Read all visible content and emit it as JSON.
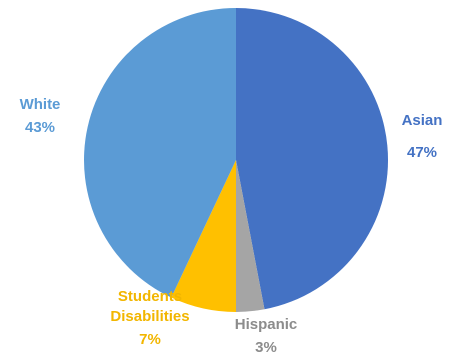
{
  "chart_data": {
    "type": "pie",
    "title": "",
    "start_angle_deg": 0,
    "direction": "clockwise",
    "slices": [
      {
        "key": "asian",
        "label": "Asian",
        "value": 47,
        "value_label": "47%",
        "color": "#4472C4",
        "label_color": "#4472C4"
      },
      {
        "key": "hispanic",
        "label": "Hispanic",
        "value": 3,
        "value_label": "3%",
        "color": "#A5A5A5",
        "label_color": "#8C8C8C"
      },
      {
        "key": "students-disabilities",
        "label": "Students\nDisabilities",
        "value": 7,
        "value_label": "7%",
        "color": "#FFC000",
        "label_color": "#F2B600"
      },
      {
        "key": "white",
        "label": "White",
        "value": 43,
        "value_label": "43%",
        "color": "#5B9BD5",
        "label_color": "#5B9BD5"
      }
    ]
  }
}
